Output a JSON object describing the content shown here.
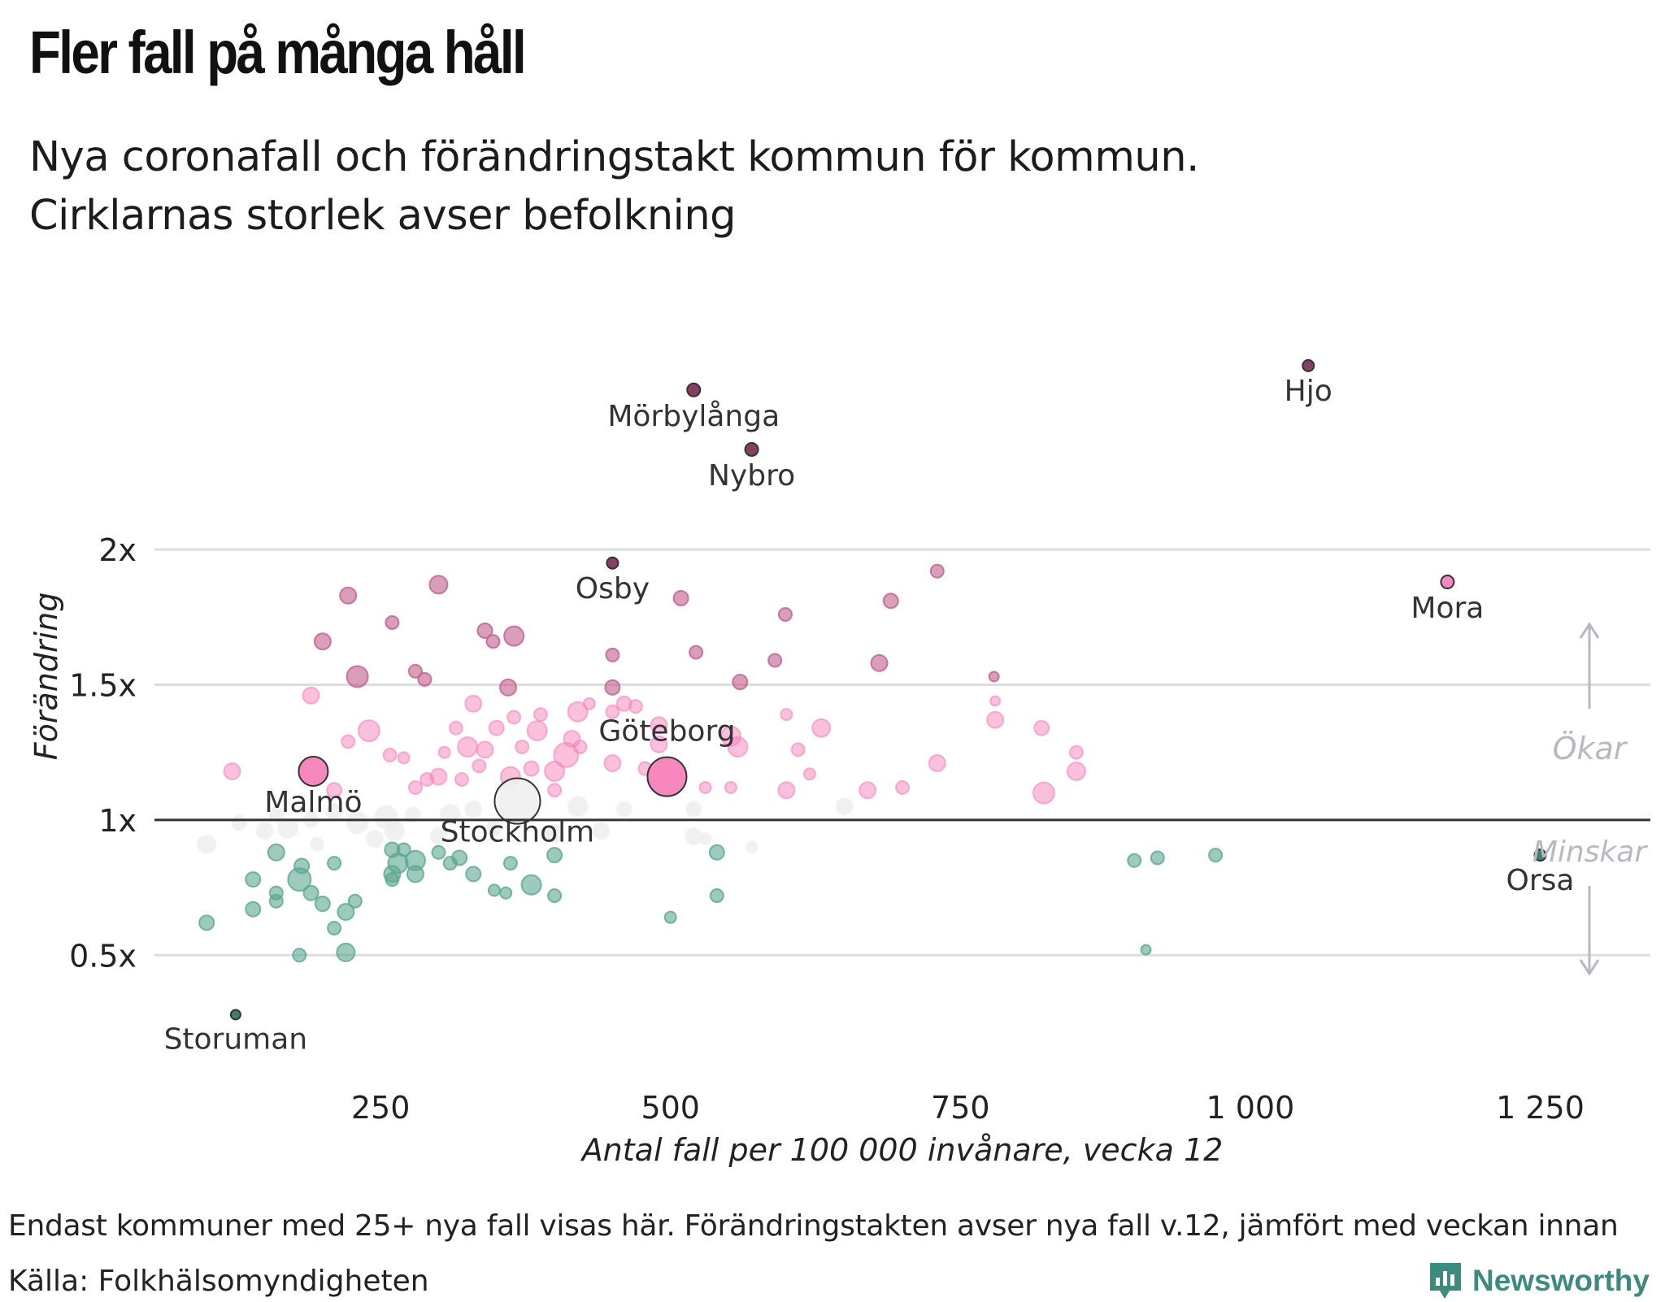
{
  "header": {
    "title": "Fler fall på många håll",
    "subtitle_line1": "Nya coronafall och förändringstakt kommun för kommun.",
    "subtitle_line2": "Cirklarnas storlek avser befolkning"
  },
  "footer": {
    "note": "Endast kommuner med 25+ nya fall visas här. Förändringstakten avser nya fall v.12, jämfört med veckan innan",
    "source": "Källa: Folkhälsomyndigheten",
    "logo_text": "Newsworthy"
  },
  "colors": {
    "increase": "#f782b9",
    "increase_strong": "#c05e8c",
    "increase_extreme": "#7a2a52",
    "decrease": "#5aa68f",
    "decrease_extreme": "#2f6f63",
    "neutral": "#e9e9e9",
    "baseline": "#333333",
    "grid": "#dddddd",
    "arrow": "#b8b8c4",
    "brand": "#3d8b7d"
  },
  "chart_data": {
    "type": "scatter",
    "xlabel": "Antal fall per 100 000 invånare, vecka 12",
    "ylabel": "Förändring",
    "xlim": [
      55,
      1345
    ],
    "ylim": [
      0.05,
      2.95
    ],
    "x_ticks": [
      {
        "value": 250,
        "label": "250"
      },
      {
        "value": 500,
        "label": "500"
      },
      {
        "value": 750,
        "label": "750"
      },
      {
        "value": 1000,
        "label": "1 000"
      },
      {
        "value": 1250,
        "label": "1 250"
      }
    ],
    "y_ticks": [
      {
        "value": 0.5,
        "label": "0.5x"
      },
      {
        "value": 1,
        "label": "1x"
      },
      {
        "value": 1.5,
        "label": "1.5x"
      },
      {
        "value": 2,
        "label": "2x"
      }
    ],
    "annotations": {
      "up": "Ökar",
      "down": "Minskar"
    },
    "labeled_points": [
      {
        "name": "Mörbylånga",
        "x": 520,
        "y": 2.59,
        "r": 8
      },
      {
        "name": "Hjo",
        "x": 1050,
        "y": 2.68,
        "r": 7
      },
      {
        "name": "Nybro",
        "x": 570,
        "y": 2.37,
        "r": 8
      },
      {
        "name": "Osby",
        "x": 450,
        "y": 1.95,
        "r": 7
      },
      {
        "name": "Mora",
        "x": 1170,
        "y": 1.88,
        "r": 8
      },
      {
        "name": "Göteborg",
        "x": 497,
        "y": 1.16,
        "r": 24
      },
      {
        "name": "Malmö",
        "x": 192,
        "y": 1.18,
        "r": 18
      },
      {
        "name": "Stockholm",
        "x": 368,
        "y": 1.07,
        "r": 28
      },
      {
        "name": "Orsa",
        "x": 1250,
        "y": 0.87,
        "r": 7
      },
      {
        "name": "Storuman",
        "x": 125,
        "y": 0.28,
        "r": 6
      }
    ],
    "points": [
      {
        "x": 222,
        "y": 1.83,
        "r": 10
      },
      {
        "x": 300,
        "y": 1.87,
        "r": 11
      },
      {
        "x": 200,
        "y": 1.66,
        "r": 10
      },
      {
        "x": 260,
        "y": 1.73,
        "r": 8
      },
      {
        "x": 340,
        "y": 1.7,
        "r": 9
      },
      {
        "x": 365,
        "y": 1.68,
        "r": 12
      },
      {
        "x": 347,
        "y": 1.66,
        "r": 8
      },
      {
        "x": 230,
        "y": 1.53,
        "r": 13
      },
      {
        "x": 280,
        "y": 1.55,
        "r": 8
      },
      {
        "x": 288,
        "y": 1.52,
        "r": 8
      },
      {
        "x": 450,
        "y": 1.61,
        "r": 8
      },
      {
        "x": 509,
        "y": 1.82,
        "r": 9
      },
      {
        "x": 522,
        "y": 1.62,
        "r": 8
      },
      {
        "x": 599,
        "y": 1.76,
        "r": 8
      },
      {
        "x": 690,
        "y": 1.81,
        "r": 9
      },
      {
        "x": 730,
        "y": 1.92,
        "r": 8
      },
      {
        "x": 590,
        "y": 1.59,
        "r": 8
      },
      {
        "x": 560,
        "y": 1.51,
        "r": 9
      },
      {
        "x": 680,
        "y": 1.58,
        "r": 10
      },
      {
        "x": 779,
        "y": 1.53,
        "r": 6
      },
      {
        "x": 190,
        "y": 1.46,
        "r": 10
      },
      {
        "x": 240,
        "y": 1.33,
        "r": 13
      },
      {
        "x": 222,
        "y": 1.29,
        "r": 8
      },
      {
        "x": 258,
        "y": 1.24,
        "r": 8
      },
      {
        "x": 270,
        "y": 1.23,
        "r": 7
      },
      {
        "x": 122,
        "y": 1.18,
        "r": 10
      },
      {
        "x": 210,
        "y": 1.11,
        "r": 9
      },
      {
        "x": 300,
        "y": 1.16,
        "r": 10
      },
      {
        "x": 290,
        "y": 1.15,
        "r": 8
      },
      {
        "x": 280,
        "y": 1.12,
        "r": 8
      },
      {
        "x": 330,
        "y": 1.43,
        "r": 10
      },
      {
        "x": 315,
        "y": 1.34,
        "r": 8
      },
      {
        "x": 325,
        "y": 1.27,
        "r": 12
      },
      {
        "x": 340,
        "y": 1.26,
        "r": 10
      },
      {
        "x": 335,
        "y": 1.2,
        "r": 8
      },
      {
        "x": 320,
        "y": 1.15,
        "r": 8
      },
      {
        "x": 305,
        "y": 1.25,
        "r": 7
      },
      {
        "x": 350,
        "y": 1.34,
        "r": 9
      },
      {
        "x": 360,
        "y": 1.49,
        "r": 10
      },
      {
        "x": 365,
        "y": 1.38,
        "r": 8
      },
      {
        "x": 372,
        "y": 1.27,
        "r": 8
      },
      {
        "x": 362,
        "y": 1.16,
        "r": 12
      },
      {
        "x": 380,
        "y": 1.19,
        "r": 9
      },
      {
        "x": 385,
        "y": 1.33,
        "r": 12
      },
      {
        "x": 388,
        "y": 1.39,
        "r": 8
      },
      {
        "x": 400,
        "y": 1.18,
        "r": 12
      },
      {
        "x": 400,
        "y": 1.11,
        "r": 8
      },
      {
        "x": 410,
        "y": 1.24,
        "r": 15
      },
      {
        "x": 415,
        "y": 1.3,
        "r": 10
      },
      {
        "x": 420,
        "y": 1.4,
        "r": 12
      },
      {
        "x": 422,
        "y": 1.27,
        "r": 8
      },
      {
        "x": 430,
        "y": 1.43,
        "r": 7
      },
      {
        "x": 450,
        "y": 1.49,
        "r": 9
      },
      {
        "x": 450,
        "y": 1.4,
        "r": 8
      },
      {
        "x": 450,
        "y": 1.21,
        "r": 10
      },
      {
        "x": 460,
        "y": 1.43,
        "r": 9
      },
      {
        "x": 470,
        "y": 1.42,
        "r": 8
      },
      {
        "x": 478,
        "y": 1.19,
        "r": 8
      },
      {
        "x": 490,
        "y": 1.35,
        "r": 10
      },
      {
        "x": 490,
        "y": 1.28,
        "r": 10
      },
      {
        "x": 530,
        "y": 1.12,
        "r": 7
      },
      {
        "x": 552,
        "y": 1.31,
        "r": 12
      },
      {
        "x": 558,
        "y": 1.27,
        "r": 12
      },
      {
        "x": 552,
        "y": 1.12,
        "r": 7
      },
      {
        "x": 600,
        "y": 1.39,
        "r": 7
      },
      {
        "x": 610,
        "y": 1.26,
        "r": 8
      },
      {
        "x": 620,
        "y": 1.17,
        "r": 7
      },
      {
        "x": 600,
        "y": 1.11,
        "r": 10
      },
      {
        "x": 630,
        "y": 1.34,
        "r": 11
      },
      {
        "x": 670,
        "y": 1.11,
        "r": 10
      },
      {
        "x": 700,
        "y": 1.12,
        "r": 8
      },
      {
        "x": 730,
        "y": 1.21,
        "r": 10
      },
      {
        "x": 780,
        "y": 1.44,
        "r": 6
      },
      {
        "x": 780,
        "y": 1.37,
        "r": 10
      },
      {
        "x": 820,
        "y": 1.34,
        "r": 9
      },
      {
        "x": 822,
        "y": 1.1,
        "r": 13
      },
      {
        "x": 850,
        "y": 1.25,
        "r": 8
      },
      {
        "x": 850,
        "y": 1.18,
        "r": 11
      },
      {
        "x": 100,
        "y": 0.91,
        "r": 11
      },
      {
        "x": 128,
        "y": 0.99,
        "r": 9
      },
      {
        "x": 150,
        "y": 0.96,
        "r": 10
      },
      {
        "x": 160,
        "y": 1.02,
        "r": 9
      },
      {
        "x": 170,
        "y": 0.97,
        "r": 12
      },
      {
        "x": 190,
        "y": 1.0,
        "r": 9
      },
      {
        "x": 195,
        "y": 0.91,
        "r": 8
      },
      {
        "x": 210,
        "y": 1.03,
        "r": 10
      },
      {
        "x": 230,
        "y": 0.99,
        "r": 13
      },
      {
        "x": 245,
        "y": 0.93,
        "r": 10
      },
      {
        "x": 255,
        "y": 1.01,
        "r": 14
      },
      {
        "x": 262,
        "y": 0.96,
        "r": 12
      },
      {
        "x": 278,
        "y": 1.02,
        "r": 9
      },
      {
        "x": 300,
        "y": 0.94,
        "r": 10
      },
      {
        "x": 310,
        "y": 1.02,
        "r": 12
      },
      {
        "x": 330,
        "y": 1.04,
        "r": 10
      },
      {
        "x": 348,
        "y": 0.97,
        "r": 9
      },
      {
        "x": 400,
        "y": 0.95,
        "r": 11
      },
      {
        "x": 420,
        "y": 1.05,
        "r": 12
      },
      {
        "x": 440,
        "y": 0.96,
        "r": 10
      },
      {
        "x": 460,
        "y": 1.04,
        "r": 9
      },
      {
        "x": 520,
        "y": 1.04,
        "r": 9
      },
      {
        "x": 520,
        "y": 0.94,
        "r": 10
      },
      {
        "x": 570,
        "y": 0.9,
        "r": 7
      },
      {
        "x": 650,
        "y": 1.05,
        "r": 10
      },
      {
        "x": 530,
        "y": 0.93,
        "r": 7
      },
      {
        "x": 100,
        "y": 0.62,
        "r": 9
      },
      {
        "x": 140,
        "y": 0.78,
        "r": 9
      },
      {
        "x": 140,
        "y": 0.67,
        "r": 9
      },
      {
        "x": 160,
        "y": 0.88,
        "r": 10
      },
      {
        "x": 160,
        "y": 0.73,
        "r": 8
      },
      {
        "x": 160,
        "y": 0.7,
        "r": 8
      },
      {
        "x": 180,
        "y": 0.78,
        "r": 14
      },
      {
        "x": 182,
        "y": 0.83,
        "r": 9
      },
      {
        "x": 190,
        "y": 0.73,
        "r": 9
      },
      {
        "x": 200,
        "y": 0.69,
        "r": 9
      },
      {
        "x": 210,
        "y": 0.84,
        "r": 8
      },
      {
        "x": 210,
        "y": 0.6,
        "r": 8
      },
      {
        "x": 220,
        "y": 0.66,
        "r": 10
      },
      {
        "x": 228,
        "y": 0.7,
        "r": 8
      },
      {
        "x": 220,
        "y": 0.51,
        "r": 11
      },
      {
        "x": 180,
        "y": 0.5,
        "r": 8
      },
      {
        "x": 260,
        "y": 0.89,
        "r": 9
      },
      {
        "x": 270,
        "y": 0.89,
        "r": 8
      },
      {
        "x": 265,
        "y": 0.84,
        "r": 12
      },
      {
        "x": 260,
        "y": 0.8,
        "r": 10
      },
      {
        "x": 260,
        "y": 0.78,
        "r": 8
      },
      {
        "x": 280,
        "y": 0.85,
        "r": 12
      },
      {
        "x": 280,
        "y": 0.8,
        "r": 10
      },
      {
        "x": 300,
        "y": 0.88,
        "r": 8
      },
      {
        "x": 310,
        "y": 0.84,
        "r": 8
      },
      {
        "x": 318,
        "y": 0.86,
        "r": 9
      },
      {
        "x": 330,
        "y": 0.8,
        "r": 9
      },
      {
        "x": 348,
        "y": 0.74,
        "r": 7
      },
      {
        "x": 358,
        "y": 0.73,
        "r": 7
      },
      {
        "x": 362,
        "y": 0.84,
        "r": 8
      },
      {
        "x": 380,
        "y": 0.76,
        "r": 12
      },
      {
        "x": 400,
        "y": 0.87,
        "r": 9
      },
      {
        "x": 400,
        "y": 0.72,
        "r": 8
      },
      {
        "x": 500,
        "y": 0.64,
        "r": 7
      },
      {
        "x": 540,
        "y": 0.88,
        "r": 9
      },
      {
        "x": 540,
        "y": 0.72,
        "r": 8
      },
      {
        "x": 900,
        "y": 0.85,
        "r": 8
      },
      {
        "x": 920,
        "y": 0.86,
        "r": 8
      },
      {
        "x": 970,
        "y": 0.87,
        "r": 8
      },
      {
        "x": 910,
        "y": 0.52,
        "r": 6
      }
    ]
  }
}
